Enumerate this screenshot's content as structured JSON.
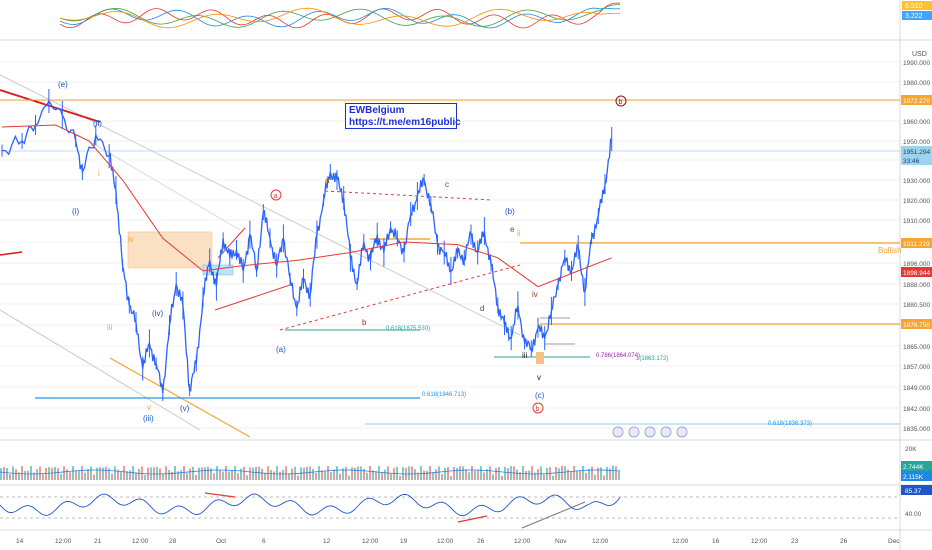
{
  "app": {
    "currency": "USD",
    "watermark": {
      "name": "EWBelgium",
      "link": "https://t.me/em16public"
    }
  },
  "price_axis": {
    "ticks": [
      "1990.000",
      "1980.000",
      "1970.000",
      "1960.000",
      "1950.000",
      "1940.000",
      "1930.000",
      "1920.000",
      "1910.000",
      "1904.000",
      "1896.000",
      "1888.000",
      "1880.500",
      "1873.000",
      "1865.000",
      "1857.000",
      "1849.000",
      "1842.000",
      "1835.000"
    ],
    "badges": [
      {
        "value": "1972.270",
        "color": "#f7a530"
      },
      {
        "value": "1951.294",
        "color": "#9cd4f0"
      },
      {
        "value": "33:46",
        "color": "#9cd4f0"
      },
      {
        "value": "1911.219",
        "color": "#f7a530"
      },
      {
        "value": "1898.944",
        "color": "#e53935"
      },
      {
        "value": "1876.750",
        "color": "#f7a530"
      }
    ]
  },
  "top_pane": {
    "ticks": [
      "6.510",
      "3.222"
    ]
  },
  "volume_pane": {
    "ticks": [
      "20K",
      "2.744K",
      "2.115K"
    ]
  },
  "rsi_pane": {
    "ticks": [
      "85.37",
      "40.00"
    ]
  },
  "time_axis": [
    "14",
    "12:00",
    "21",
    "12:00",
    "28",
    "Oct",
    "6",
    "12",
    "12:00",
    "19",
    "12:00",
    "26",
    "12:00",
    "Nov",
    "12:00",
    "12:00",
    "16",
    "12:00",
    "23",
    "26",
    "Dec"
  ],
  "fib_labels": {
    "f1": "0.618(1846.713)",
    "f2": "0.618(1875.530)",
    "f3": "0.786(1864.074)",
    "f4": "1(1863.172)",
    "f5": "0.618(1836.373)"
  },
  "side_label": "Bullish",
  "wave_labels": {
    "e_paren": "(e)",
    "ii_paren": "(ii)",
    "i_roman": "i",
    "i_paren": "(i)",
    "iv_orange": "iv",
    "iii_orange": "iii",
    "iv_paren": "(iv)",
    "v_orange": "v",
    "iii_paren": "(iii)",
    "v_paren": "(v)",
    "a_circle": "a",
    "a_paren": "(a)",
    "a_small": "a",
    "b_small": "b",
    "c_small": "c",
    "d_small": "d",
    "b_paren": "(b)",
    "e_small": "e",
    "ii_small": "ii",
    "iv_small": "iv",
    "iii_small": "iii",
    "v_small": "v",
    "c_paren": "(c)",
    "b_circle_low": "b",
    "b_circle_top": "b"
  },
  "chart_data": {
    "type": "candlestick",
    "symbol_currency": "USD",
    "close_path": [
      [
        0,
        1945
      ],
      [
        3,
        1950
      ],
      [
        5,
        1958
      ],
      [
        7,
        1970
      ],
      [
        9,
        1963
      ],
      [
        11,
        1950
      ],
      [
        12,
        1934
      ],
      [
        14,
        1953
      ],
      [
        16,
        1942
      ],
      [
        17,
        1925
      ],
      [
        18,
        1895
      ],
      [
        19,
        1880
      ],
      [
        20,
        1874
      ],
      [
        21,
        1856
      ],
      [
        22,
        1866
      ],
      [
        23,
        1858
      ],
      [
        24,
        1847
      ],
      [
        25,
        1873
      ],
      [
        26,
        1888
      ],
      [
        27,
        1880
      ],
      [
        28,
        1848
      ],
      [
        29,
        1858
      ],
      [
        30,
        1883
      ],
      [
        31,
        1897
      ],
      [
        32,
        1887
      ],
      [
        33,
        1905
      ],
      [
        34,
        1898
      ],
      [
        35,
        1901
      ],
      [
        36,
        1893
      ],
      [
        37,
        1906
      ],
      [
        38,
        1893
      ],
      [
        39,
        1914
      ],
      [
        40,
        1905
      ],
      [
        41,
        1895
      ],
      [
        42,
        1905
      ],
      [
        43,
        1890
      ],
      [
        44,
        1879
      ],
      [
        45,
        1890
      ],
      [
        46,
        1884
      ],
      [
        47,
        1906
      ],
      [
        48,
        1920
      ],
      [
        49,
        1934
      ],
      [
        50,
        1930
      ],
      [
        51,
        1921
      ],
      [
        52,
        1898
      ],
      [
        53,
        1888
      ],
      [
        54,
        1904
      ],
      [
        55,
        1897
      ],
      [
        56,
        1906
      ],
      [
        57,
        1900
      ],
      [
        58,
        1908
      ],
      [
        59,
        1905
      ],
      [
        60,
        1900
      ],
      [
        61,
        1913
      ],
      [
        62,
        1922
      ],
      [
        63,
        1930
      ],
      [
        64,
        1918
      ],
      [
        65,
        1903
      ],
      [
        66,
        1900
      ],
      [
        67,
        1893
      ],
      [
        68,
        1900
      ],
      [
        69,
        1898
      ],
      [
        70,
        1906
      ],
      [
        71,
        1900
      ],
      [
        72,
        1907
      ],
      [
        73,
        1895
      ],
      [
        74,
        1880
      ],
      [
        75,
        1873
      ],
      [
        76,
        1868
      ],
      [
        77,
        1880
      ],
      [
        78,
        1866
      ],
      [
        79,
        1864
      ],
      [
        80,
        1872
      ],
      [
        81,
        1868
      ],
      [
        82,
        1878
      ],
      [
        83,
        1888
      ],
      [
        84,
        1898
      ],
      [
        85,
        1893
      ],
      [
        86,
        1902
      ],
      [
        87,
        1885
      ],
      [
        88,
        1905
      ],
      [
        89,
        1912
      ],
      [
        90,
        1928
      ],
      [
        91,
        1951
      ]
    ],
    "moving_average": [
      [
        0,
        1957
      ],
      [
        8,
        1958
      ],
      [
        13,
        1950
      ],
      [
        18,
        1930
      ],
      [
        24,
        1905
      ],
      [
        30,
        1893
      ],
      [
        36,
        1895
      ],
      [
        44,
        1897
      ],
      [
        52,
        1900
      ],
      [
        60,
        1904
      ],
      [
        68,
        1903
      ],
      [
        74,
        1898
      ],
      [
        80,
        1887
      ],
      [
        86,
        1893
      ],
      [
        91,
        1898
      ]
    ],
    "x_range": [
      0,
      91
    ],
    "y_range": [
      1830,
      2000
    ],
    "legend": "none"
  }
}
